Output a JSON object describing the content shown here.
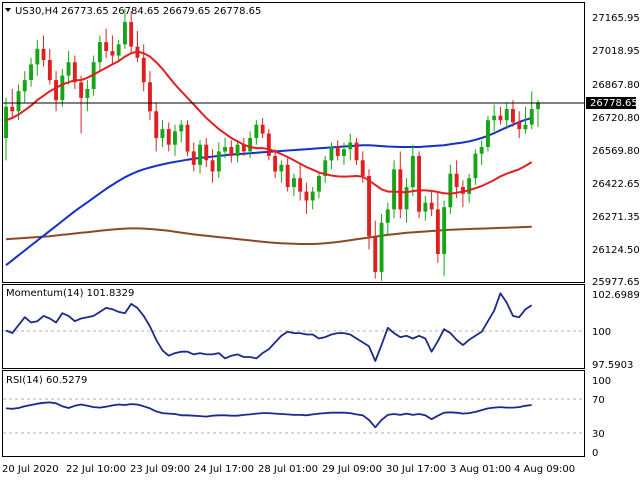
{
  "colors": {
    "background": "#ffffff",
    "frame": "#000000",
    "bull": "#17a517",
    "bear": "#e02020",
    "ma_fast": "#e02020",
    "ma_mid": "#1432c8",
    "ma_slow": "#8a4a23",
    "indicator": "#1c2a8a",
    "current_price_bg": "#000000",
    "current_price_text": "#ffffff"
  },
  "header": {
    "symbol_label": "US30,H4",
    "ohlc": "26773.65 26784.65 26679.65 26778.65"
  },
  "price_panel": {
    "price_axis": [
      "27165.95",
      "27018.95",
      "26867.80",
      "26720.80",
      "26569.80",
      "26422.65",
      "26271.35",
      "26124.50",
      "25977.65"
    ],
    "current_price": "26778.65"
  },
  "momentum_panel": {
    "title": "Momentum(14) 101.8329",
    "axis": [
      "102.6989",
      "100",
      "97.5903"
    ]
  },
  "rsi_panel": {
    "title": "RSI(14) 60.5279",
    "axis": [
      "100",
      "70",
      "30",
      "0"
    ]
  },
  "time_axis": [
    "20 Jul 2020",
    "22 Jul 10:00",
    "23 Jul 09:00",
    "24 Jul 17:00",
    "28 Jul 01:00",
    "29 Jul 09:00",
    "30 Jul 17:00",
    "3 Aug 01:00",
    "4 Aug 09:00"
  ],
  "chart_data": [
    {
      "type": "candlestick",
      "title": "US30,H4",
      "ylim": [
        25970,
        27230
      ],
      "series_names": [],
      "candles": [
        [
          26620,
          26800,
          26520,
          26760
        ],
        [
          26760,
          26840,
          26710,
          26740
        ],
        [
          26740,
          26860,
          26700,
          26830
        ],
        [
          26830,
          26920,
          26780,
          26880
        ],
        [
          26880,
          26980,
          26850,
          26950
        ],
        [
          26950,
          27060,
          26900,
          27020
        ],
        [
          27020,
          27080,
          26940,
          26970
        ],
        [
          26970,
          27020,
          26860,
          26880
        ],
        [
          26880,
          26920,
          26740,
          26790
        ],
        [
          26790,
          26930,
          26760,
          26900
        ],
        [
          26900,
          27010,
          26860,
          26960
        ],
        [
          26960,
          26990,
          26840,
          26870
        ],
        [
          26870,
          26900,
          26640,
          26800
        ],
        [
          26800,
          26880,
          26740,
          26840
        ],
        [
          26840,
          26990,
          26810,
          26960
        ],
        [
          26960,
          27080,
          26920,
          27050
        ],
        [
          27050,
          27110,
          26980,
          27010
        ],
        [
          27010,
          27080,
          26950,
          26990
        ],
        [
          26990,
          27060,
          26960,
          27040
        ],
        [
          27040,
          27200,
          27020,
          27140
        ],
        [
          27140,
          27190,
          27000,
          27030
        ],
        [
          27030,
          27100,
          26960,
          26980
        ],
        [
          26980,
          27040,
          26830,
          26870
        ],
        [
          26870,
          26920,
          26700,
          26740
        ],
        [
          26740,
          26780,
          26560,
          26620
        ],
        [
          26620,
          26700,
          26580,
          26660
        ],
        [
          26660,
          26690,
          26560,
          26590
        ],
        [
          26590,
          26680,
          26540,
          26650
        ],
        [
          26650,
          26700,
          26600,
          26680
        ],
        [
          26680,
          26700,
          26540,
          26560
        ],
        [
          26560,
          26600,
          26470,
          26500
        ],
        [
          26500,
          26610,
          26460,
          26590
        ],
        [
          26590,
          26620,
          26490,
          26520
        ],
        [
          26520,
          26570,
          26420,
          26470
        ],
        [
          26470,
          26600,
          26440,
          26560
        ],
        [
          26560,
          26620,
          26530,
          26580
        ],
        [
          26580,
          26610,
          26510,
          26540
        ],
        [
          26540,
          26610,
          26510,
          26590
        ],
        [
          26590,
          26620,
          26540,
          26560
        ],
        [
          26560,
          26650,
          26530,
          26620
        ],
        [
          26620,
          26700,
          26590,
          26680
        ],
        [
          26680,
          26710,
          26620,
          26640
        ],
        [
          26640,
          26660,
          26520,
          26540
        ],
        [
          26540,
          26570,
          26440,
          26470
        ],
        [
          26470,
          26520,
          26420,
          26500
        ],
        [
          26500,
          26530,
          26380,
          26400
        ],
        [
          26400,
          26460,
          26360,
          26440
        ],
        [
          26440,
          26500,
          26340,
          26380
        ],
        [
          26380,
          26420,
          26280,
          26340
        ],
        [
          26340,
          26400,
          26300,
          26380
        ],
        [
          26380,
          26470,
          26350,
          26450
        ],
        [
          26450,
          26540,
          26420,
          26520
        ],
        [
          26520,
          26600,
          26480,
          26580
        ],
        [
          26580,
          26610,
          26520,
          26540
        ],
        [
          26540,
          26600,
          26500,
          26570
        ],
        [
          26570,
          26640,
          26520,
          26600
        ],
        [
          26600,
          26620,
          26500,
          26520
        ],
        [
          26520,
          26560,
          26420,
          26450
        ],
        [
          26450,
          26480,
          26120,
          26180
        ],
        [
          26180,
          26250,
          25990,
          26020
        ],
        [
          26020,
          26280,
          25980,
          26240
        ],
        [
          26240,
          26330,
          26180,
          26300
        ],
        [
          26300,
          26520,
          26260,
          26480
        ],
        [
          26480,
          26560,
          26260,
          26300
        ],
        [
          26300,
          26440,
          26240,
          26400
        ],
        [
          26400,
          26590,
          26360,
          26540
        ],
        [
          26540,
          26560,
          26260,
          26290
        ],
        [
          26290,
          26360,
          26250,
          26330
        ],
        [
          26330,
          26380,
          26270,
          26300
        ],
        [
          26300,
          26380,
          26060,
          26100
        ],
        [
          26100,
          26340,
          26000,
          26310
        ],
        [
          26310,
          26500,
          26280,
          26460
        ],
        [
          26460,
          26520,
          26350,
          26400
        ],
        [
          26400,
          26430,
          26310,
          26370
        ],
        [
          26370,
          26460,
          26330,
          26440
        ],
        [
          26440,
          26570,
          26410,
          26550
        ],
        [
          26550,
          26610,
          26500,
          26580
        ],
        [
          26580,
          26720,
          26560,
          26700
        ],
        [
          26700,
          26770,
          26650,
          26720
        ],
        [
          26720,
          26760,
          26680,
          26700
        ],
        [
          26700,
          26780,
          26660,
          26750
        ],
        [
          26750,
          26790,
          26670,
          26690
        ],
        [
          26690,
          26740,
          26620,
          26660
        ],
        [
          26660,
          26760,
          26640,
          26680
        ],
        [
          26680,
          26830,
          26660,
          26750
        ],
        [
          26750,
          26790,
          26670,
          26780
        ]
      ],
      "ma_fast": [
        26700,
        26710,
        26725,
        26745,
        26765,
        26790,
        26810,
        26830,
        26845,
        26860,
        26870,
        26880,
        26880,
        26890,
        26905,
        26920,
        26935,
        26950,
        26965,
        26985,
        27000,
        27008,
        27000,
        26985,
        26960,
        26930,
        26895,
        26860,
        26830,
        26800,
        26770,
        26740,
        26710,
        26685,
        26660,
        26640,
        26620,
        26605,
        26590,
        26580,
        26575,
        26575,
        26570,
        26560,
        26548,
        26535,
        26520,
        26505,
        26490,
        26478,
        26466,
        26458,
        26452,
        26448,
        26447,
        26448,
        26450,
        26446,
        26430,
        26410,
        26390,
        26380,
        26380,
        26378,
        26377,
        26382,
        26385,
        26385,
        26383,
        26378,
        26372,
        26370,
        26375,
        26380,
        26386,
        26395,
        26405,
        26418,
        26432,
        26448,
        26460,
        26470,
        26480,
        26495,
        26512
      ],
      "ma_mid": [
        26050,
        26072,
        26094,
        26116,
        26138,
        26160,
        26182,
        26204,
        26226,
        26248,
        26270,
        26292,
        26312,
        26332,
        26352,
        26372,
        26392,
        26410,
        26428,
        26444,
        26458,
        26470,
        26480,
        26488,
        26495,
        26502,
        26508,
        26513,
        26518,
        26523,
        26527,
        26531,
        26534,
        26537,
        26540,
        26543,
        26546,
        26548,
        26550,
        26552,
        26554,
        26556,
        26558,
        26560,
        26562,
        26564,
        26566,
        26568,
        26570,
        26572,
        26574,
        26576,
        26578,
        26580,
        26582,
        26584,
        26586,
        26588,
        26588,
        26586,
        26584,
        26582,
        26581,
        26580,
        26580,
        26580,
        26580,
        26582,
        26584,
        26586,
        26588,
        26592,
        26596,
        26600,
        26605,
        26612,
        26620,
        26630,
        26642,
        26655,
        26668,
        26680,
        26692,
        26702,
        26710
      ],
      "ma_slow": [
        26166,
        26168,
        26170,
        26172,
        26174,
        26176,
        26178,
        26180,
        26183,
        26186,
        26189,
        26192,
        26195,
        26198,
        26201,
        26204,
        26207,
        26210,
        26212,
        26214,
        26215,
        26215,
        26214,
        26212,
        26210,
        26207,
        26204,
        26200,
        26196,
        26192,
        26188,
        26185,
        26182,
        26179,
        26176,
        26173,
        26170,
        26167,
        26164,
        26161,
        26158,
        26155,
        26152,
        26150,
        26148,
        26147,
        26146,
        26145,
        26145,
        26145,
        26146,
        26148,
        26151,
        26154,
        26158,
        26162,
        26166,
        26170,
        26174,
        26178,
        26182,
        26186,
        26189,
        26192,
        26195,
        26197,
        26199,
        26201,
        26203,
        26205,
        26207,
        26209,
        26210,
        26211,
        26212,
        26213,
        26214,
        26215,
        26216,
        26217,
        26218,
        26219,
        26220,
        26221,
        26222
      ]
    },
    {
      "type": "line",
      "title": "Momentum(14) 101.8329",
      "ylim": [
        97.0,
        103.4
      ],
      "values": [
        99.9,
        99.7,
        100.3,
        100.9,
        100.5,
        100.6,
        101.0,
        100.8,
        100.5,
        101.2,
        101.0,
        100.6,
        100.8,
        100.9,
        101.0,
        101.3,
        101.6,
        101.5,
        101.3,
        101.2,
        101.9,
        101.6,
        101.0,
        100.2,
        99.2,
        98.4,
        98.0,
        98.2,
        98.3,
        98.3,
        98.1,
        98.2,
        98.1,
        98.1,
        98.2,
        97.8,
        98.0,
        98.1,
        97.9,
        97.9,
        97.8,
        98.2,
        98.5,
        99.0,
        99.5,
        99.8,
        99.7,
        99.7,
        99.6,
        99.6,
        99.3,
        99.4,
        99.6,
        99.7,
        99.7,
        99.6,
        99.3,
        99.0,
        98.7,
        97.6,
        98.8,
        100.1,
        99.7,
        99.4,
        99.5,
        99.3,
        99.5,
        99.3,
        98.3,
        99.1,
        100.0,
        99.7,
        99.2,
        98.8,
        99.2,
        99.5,
        99.8,
        100.6,
        101.4,
        102.7,
        102.0,
        101.0,
        100.9,
        101.5,
        101.8
      ]
    },
    {
      "type": "line",
      "title": "RSI(14) 60.5279",
      "ylim": [
        0,
        100
      ],
      "values": [
        56.5,
        56.0,
        57.0,
        59.0,
        60.5,
        62.0,
        63.0,
        63.5,
        62.5,
        59.0,
        57.0,
        59.5,
        61.0,
        59.5,
        58.0,
        57.5,
        58.5,
        60.0,
        61.0,
        60.5,
        61.5,
        61.0,
        59.0,
        56.5,
        53.0,
        51.0,
        50.5,
        50.0,
        48.5,
        48.5,
        48.0,
        47.5,
        47.0,
        48.0,
        48.5,
        48.5,
        48.0,
        48.0,
        49.0,
        49.5,
        50.5,
        51.0,
        51.0,
        50.5,
        50.0,
        49.5,
        49.0,
        49.0,
        48.5,
        49.5,
        50.5,
        51.0,
        51.5,
        51.5,
        51.5,
        51.0,
        49.5,
        48.5,
        43.0,
        34.5,
        43.0,
        49.0,
        50.0,
        49.0,
        50.5,
        49.0,
        50.0,
        48.5,
        44.0,
        48.0,
        51.5,
        52.0,
        51.5,
        50.5,
        51.0,
        52.5,
        54.5,
        56.5,
        57.5,
        58.0,
        57.5,
        57.5,
        58.0,
        59.5,
        60.5
      ]
    }
  ]
}
